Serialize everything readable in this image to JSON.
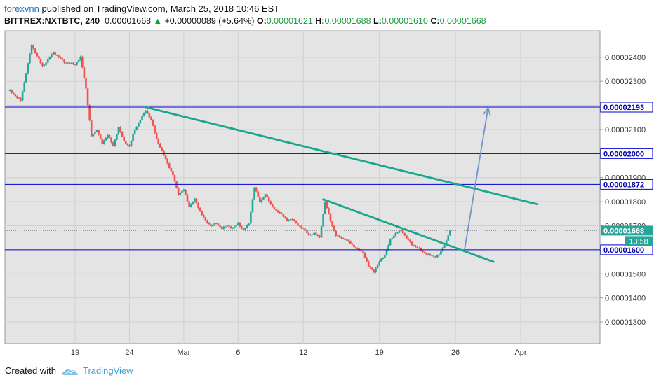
{
  "header": {
    "author": "forexvnn",
    "published_text": "published on TradingView.com, March 25, 2018 10:46 EST",
    "symbol": "BITTREX:NXTBTC, 240",
    "last_price": "0.00001668",
    "change_arrow": "▲",
    "change": "+0.00000089 (+5.64%)",
    "open_label": "O:",
    "open": "0.00001621",
    "high_label": "H:",
    "high": "0.00001688",
    "low_label": "L:",
    "low": "0.00001610",
    "close_label": "C:",
    "close": "0.00001668"
  },
  "footer": {
    "created_with": "Created with",
    "brand": "TradingView"
  },
  "colors": {
    "up": "#26a69a",
    "down": "#ef5350",
    "hline": "#0000cc",
    "trend": "#1aa58f",
    "arrow": "#6f95cf",
    "plot_bg": "#e4e4e4",
    "grid": "#d0d0d0"
  },
  "chart_data": {
    "type": "candlestick",
    "title": "",
    "xlabel": "",
    "ylabel": "",
    "x_ticks": [
      "19",
      "24",
      "Mar",
      "6",
      "12",
      "19",
      "26",
      "Apr"
    ],
    "x_tick_dates": [
      "2018-02-19",
      "2018-02-24",
      "2018-03-01",
      "2018-03-06",
      "2018-03-12",
      "2018-03-19",
      "2018-03-26",
      "2018-04-01"
    ],
    "y_ticks": [
      "0.00001300",
      "0.00001400",
      "0.00001500",
      "0.00001600",
      "0.00001700",
      "0.00001800",
      "0.00001900",
      "0.00002000",
      "0.00002100",
      "0.00002200",
      "0.00002300",
      "0.00002400"
    ],
    "ylim": [
      1.21e-05,
      2.51e-05
    ],
    "grid": true,
    "current_price_label": "0.00001668",
    "countdown_label": "13:58",
    "horizontal_levels": [
      {
        "price": 2.193e-05,
        "label": "0.00002193"
      },
      {
        "price": 2e-05,
        "label": "0.00002000"
      },
      {
        "price": 1.872e-05,
        "label": "0.00001872"
      },
      {
        "price": 1.6e-05,
        "label": "0.00001600"
      }
    ],
    "trendlines": [
      {
        "from": [
          "2018-02-25T12:00",
          2.193e-05
        ],
        "to": [
          "2018-04-02T12:00",
          1.79e-05
        ]
      },
      {
        "from": [
          "2018-03-13T20:00",
          1.81e-05
        ],
        "to": [
          "2018-03-29T12:00",
          1.55e-05
        ]
      }
    ],
    "arrow": {
      "from": [
        "2018-03-26T20:00",
        1.6e-05
      ],
      "to": [
        "2018-03-29T00:00",
        2.19e-05
      ]
    },
    "price_path": [
      [
        "2018-02-13T00:00",
        2.26e-05
      ],
      [
        "2018-02-14T00:00",
        2.22e-05
      ],
      [
        "2018-02-15T00:00",
        2.45e-05
      ],
      [
        "2018-02-16T00:00",
        2.36e-05
      ],
      [
        "2018-02-17T00:00",
        2.42e-05
      ],
      [
        "2018-02-18T00:00",
        2.38e-05
      ],
      [
        "2018-02-19T00:00",
        2.37e-05
      ],
      [
        "2018-02-19T12:00",
        2.4e-05
      ],
      [
        "2018-02-20T00:00",
        2.27e-05
      ],
      [
        "2018-02-20T12:00",
        2.07e-05
      ],
      [
        "2018-02-21T00:00",
        2.1e-05
      ],
      [
        "2018-02-21T12:00",
        2.04e-05
      ],
      [
        "2018-02-22T00:00",
        2.08e-05
      ],
      [
        "2018-02-22T12:00",
        2.03e-05
      ],
      [
        "2018-02-23T00:00",
        2.11e-05
      ],
      [
        "2018-02-23T12:00",
        2.05e-05
      ],
      [
        "2018-02-24T00:00",
        2.03e-05
      ],
      [
        "2018-02-24T12:00",
        2.1e-05
      ],
      [
        "2018-02-25T00:00",
        2.14e-05
      ],
      [
        "2018-02-25T12:00",
        2.18e-05
      ],
      [
        "2018-02-26T00:00",
        2.14e-05
      ],
      [
        "2018-02-26T12:00",
        2.06e-05
      ],
      [
        "2018-02-27T00:00",
        2.01e-05
      ],
      [
        "2018-02-27T12:00",
        1.96e-05
      ],
      [
        "2018-02-28T00:00",
        1.91e-05
      ],
      [
        "2018-02-28T12:00",
        1.83e-05
      ],
      [
        "2018-03-01T00:00",
        1.85e-05
      ],
      [
        "2018-03-01T12:00",
        1.78e-05
      ],
      [
        "2018-03-02T00:00",
        1.81e-05
      ],
      [
        "2018-03-02T12:00",
        1.76e-05
      ],
      [
        "2018-03-03T00:00",
        1.72e-05
      ],
      [
        "2018-03-03T12:00",
        1.7e-05
      ],
      [
        "2018-03-04T00:00",
        1.71e-05
      ],
      [
        "2018-03-04T12:00",
        1.69e-05
      ],
      [
        "2018-03-05T00:00",
        1.7e-05
      ],
      [
        "2018-03-05T12:00",
        1.69e-05
      ],
      [
        "2018-03-06T00:00",
        1.71e-05
      ],
      [
        "2018-03-06T12:00",
        1.68e-05
      ],
      [
        "2018-03-07T00:00",
        1.71e-05
      ],
      [
        "2018-03-07T12:00",
        1.86e-05
      ],
      [
        "2018-03-08T00:00",
        1.8e-05
      ],
      [
        "2018-03-08T12:00",
        1.83e-05
      ],
      [
        "2018-03-09T00:00",
        1.79e-05
      ],
      [
        "2018-03-09T12:00",
        1.76e-05
      ],
      [
        "2018-03-10T00:00",
        1.75e-05
      ],
      [
        "2018-03-10T12:00",
        1.72e-05
      ],
      [
        "2018-03-11T00:00",
        1.73e-05
      ],
      [
        "2018-03-11T12:00",
        1.7e-05
      ],
      [
        "2018-03-12T00:00",
        1.69e-05
      ],
      [
        "2018-03-12T12:00",
        1.66e-05
      ],
      [
        "2018-03-13T00:00",
        1.67e-05
      ],
      [
        "2018-03-13T12:00",
        1.65e-05
      ],
      [
        "2018-03-14T00:00",
        1.8e-05
      ],
      [
        "2018-03-14T12:00",
        1.72e-05
      ],
      [
        "2018-03-15T00:00",
        1.66e-05
      ],
      [
        "2018-03-15T12:00",
        1.65e-05
      ],
      [
        "2018-03-16T00:00",
        1.64e-05
      ],
      [
        "2018-03-16T12:00",
        1.62e-05
      ],
      [
        "2018-03-17T00:00",
        1.6e-05
      ],
      [
        "2018-03-17T12:00",
        1.59e-05
      ],
      [
        "2018-03-18T00:00",
        1.53e-05
      ],
      [
        "2018-03-18T12:00",
        1.51e-05
      ],
      [
        "2018-03-19T00:00",
        1.55e-05
      ],
      [
        "2018-03-19T12:00",
        1.58e-05
      ],
      [
        "2018-03-20T00:00",
        1.64e-05
      ],
      [
        "2018-03-20T12:00",
        1.67e-05
      ],
      [
        "2018-03-21T00:00",
        1.68e-05
      ],
      [
        "2018-03-21T12:00",
        1.65e-05
      ],
      [
        "2018-03-22T00:00",
        1.62e-05
      ],
      [
        "2018-03-22T12:00",
        1.61e-05
      ],
      [
        "2018-03-23T00:00",
        1.59e-05
      ],
      [
        "2018-03-23T12:00",
        1.58e-05
      ],
      [
        "2018-03-24T00:00",
        1.57e-05
      ],
      [
        "2018-03-24T12:00",
        1.58e-05
      ],
      [
        "2018-03-25T00:00",
        1.62e-05
      ],
      [
        "2018-03-25T12:00",
        1.68e-05
      ]
    ]
  }
}
